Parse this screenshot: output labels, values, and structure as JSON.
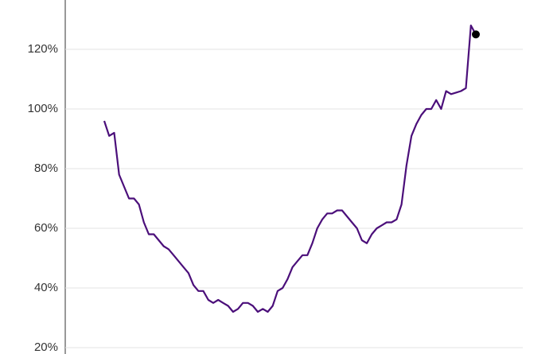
{
  "chart_data": {
    "type": "line",
    "values": [
      96,
      91,
      92,
      78,
      74,
      70,
      70,
      68,
      62,
      58,
      58,
      56,
      54,
      53,
      51,
      49,
      47,
      45,
      41,
      39,
      39,
      36,
      35,
      36,
      35,
      34,
      32,
      33,
      35,
      35,
      34,
      32,
      33,
      32,
      34,
      39,
      40,
      43,
      47,
      49,
      51,
      51,
      55,
      60,
      63,
      65,
      65,
      66,
      66,
      64,
      62,
      60,
      56,
      55,
      58,
      60,
      61,
      62,
      62,
      63,
      68,
      81,
      91,
      95,
      98,
      100,
      100,
      103,
      100,
      106,
      105,
      105.5,
      106,
      107,
      128,
      125
    ],
    "color": "#4b0f7a",
    "ylim": [
      20,
      131
    ],
    "yticks": [
      {
        "value": 20,
        "label": "20%"
      },
      {
        "value": 40,
        "label": "40%"
      },
      {
        "value": 60,
        "label": "60%"
      },
      {
        "value": 80,
        "label": "80%"
      },
      {
        "value": 100,
        "label": "100%"
      },
      {
        "value": 120,
        "label": "120%"
      }
    ],
    "grid": true,
    "marker_last": true
  }
}
